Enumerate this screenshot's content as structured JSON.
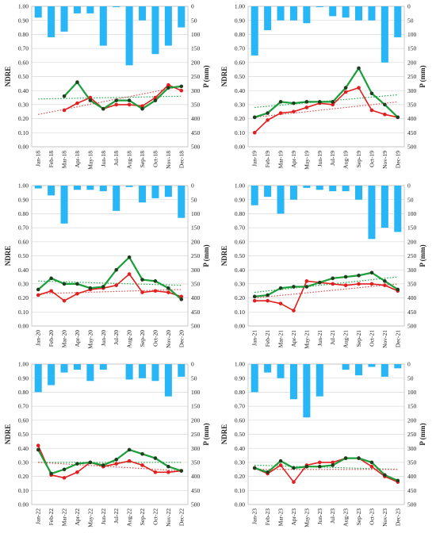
{
  "figure": {
    "y_left_label": "NDRE",
    "y_right_label": "P (mm)",
    "y_left_ticks": [
      "0.00",
      "0.10",
      "0.20",
      "0.30",
      "0.40",
      "0.50",
      "0.60",
      "0.70",
      "0.80",
      "0.90",
      "1.00"
    ],
    "y_right_ticks": [
      "0",
      "50",
      "100",
      "150",
      "200",
      "250",
      "300",
      "350",
      "400",
      "450",
      "500"
    ],
    "colors": {
      "precip": "#29b6f6",
      "green_series": "#1a9e3a",
      "red_series": "#e31e1e",
      "green_trend": "#22a84a",
      "red_trend": "#e24a4a",
      "grid": "#d9d9d9",
      "axis": "#595959"
    }
  },
  "chart_data": [
    {
      "type": "bar+line",
      "xlim_labels": "months",
      "ylim": [
        0,
        1
      ],
      "y2lim": [
        0,
        500
      ],
      "y2_inverted": true,
      "grid": true,
      "categories": [
        "Jan-18",
        "Feb-18",
        "Mar-18",
        "Apr-18",
        "May-18",
        "Jun-18",
        "Jul-18",
        "Aug-18",
        "Sep-18",
        "Oct-18",
        "Nov-18",
        "Dec-18"
      ],
      "precipitation": [
        40,
        110,
        90,
        25,
        25,
        140,
        3,
        210,
        50,
        170,
        140,
        75
      ],
      "series": [
        {
          "values": [
            null,
            null,
            0.36,
            0.46,
            0.33,
            0.27,
            0.33,
            0.33,
            0.27,
            0.33,
            0.42,
            0.43
          ]
        },
        {
          "values": [
            null,
            null,
            0.26,
            0.31,
            0.35,
            0.27,
            0.3,
            0.3,
            0.29,
            0.35,
            0.44,
            0.4
          ]
        }
      ],
      "trend_green": [
        0.34,
        0.36
      ],
      "trend_red": [
        0.23,
        0.43
      ]
    },
    {
      "type": "bar+line",
      "ylim": [
        0,
        1
      ],
      "y2lim": [
        0,
        500
      ],
      "y2_inverted": true,
      "grid": true,
      "categories": [
        "Jan-19",
        "Feb-19",
        "Mar-19",
        "Apr-19",
        "May-19",
        "Jun-19",
        "Jul-19",
        "Aug-19",
        "Sep-19",
        "Oct-19",
        "Nov-19",
        "Dec-19"
      ],
      "precipitation": [
        175,
        85,
        50,
        50,
        60,
        3,
        35,
        40,
        50,
        50,
        200,
        110
      ],
      "series": [
        {
          "values": [
            0.21,
            0.24,
            0.32,
            0.31,
            0.32,
            0.32,
            0.32,
            0.42,
            0.56,
            0.38,
            0.3,
            0.21
          ]
        },
        {
          "values": [
            0.1,
            0.19,
            0.24,
            0.25,
            0.28,
            0.31,
            0.3,
            0.39,
            0.42,
            0.26,
            0.23,
            0.21
          ]
        }
      ],
      "trend_green": [
        0.28,
        0.37
      ],
      "trend_red": [
        0.21,
        0.32
      ]
    },
    {
      "type": "bar+line",
      "ylim": [
        0,
        1
      ],
      "y2lim": [
        0,
        500
      ],
      "y2_inverted": true,
      "grid": true,
      "categories": [
        "Jan-20",
        "Feb-20",
        "Mar-20",
        "Apr-20",
        "May-20",
        "Jun-20",
        "Jul-20",
        "Aug-20",
        "Sep-20",
        "Oct-20",
        "Nov-20",
        "Dec-20"
      ],
      "precipitation": [
        10,
        35,
        135,
        15,
        15,
        20,
        90,
        5,
        60,
        45,
        40,
        115
      ],
      "series": [
        {
          "values": [
            0.26,
            0.34,
            0.3,
            0.3,
            0.27,
            0.28,
            0.4,
            0.49,
            0.33,
            0.32,
            0.27,
            0.19
          ]
        },
        {
          "values": [
            0.22,
            0.25,
            0.18,
            0.23,
            0.26,
            0.27,
            0.29,
            0.37,
            0.24,
            0.25,
            0.24,
            0.21
          ]
        }
      ],
      "trend_green": [
        0.32,
        0.29
      ],
      "trend_red": [
        0.23,
        0.26
      ]
    },
    {
      "type": "bar+line",
      "ylim": [
        0,
        1
      ],
      "y2lim": [
        0,
        500
      ],
      "y2_inverted": true,
      "grid": true,
      "categories": [
        "Jan-21",
        "Feb-21",
        "Mar-21",
        "Apr-21",
        "May-21",
        "Jun-21",
        "Jul-21",
        "Aug-21",
        "Sep-21",
        "Oct-21",
        "Nov-21",
        "Dec-21"
      ],
      "precipitation": [
        70,
        40,
        100,
        50,
        8,
        15,
        20,
        20,
        50,
        190,
        150,
        165
      ],
      "series": [
        {
          "values": [
            0.21,
            0.22,
            0.27,
            0.28,
            0.28,
            0.31,
            0.34,
            0.35,
            0.36,
            0.38,
            0.32,
            0.26
          ]
        },
        {
          "values": [
            0.18,
            0.18,
            0.16,
            0.11,
            0.32,
            0.31,
            0.3,
            0.29,
            0.3,
            0.3,
            0.29,
            0.25
          ]
        }
      ],
      "trend_green": [
        0.24,
        0.35
      ],
      "trend_red": [
        0.2,
        0.3
      ]
    },
    {
      "type": "bar+line",
      "ylim": [
        0,
        1
      ],
      "y2lim": [
        0,
        500
      ],
      "y2_inverted": true,
      "grid": true,
      "categories": [
        "Jan-22",
        "Feb-22",
        "Mar-22",
        "Apr-22",
        "May-22",
        "Jun-22",
        "Jul-22",
        "Aug-22",
        "Sep-22",
        "Oct-22",
        "Nov-22",
        "Dec-22"
      ],
      "precipitation": [
        100,
        75,
        30,
        20,
        60,
        20,
        0,
        55,
        50,
        60,
        115,
        45
      ],
      "series": [
        {
          "values": [
            0.39,
            0.22,
            0.25,
            0.29,
            0.3,
            0.28,
            0.32,
            0.39,
            0.36,
            0.33,
            0.27,
            0.24
          ]
        },
        {
          "values": [
            0.42,
            0.21,
            0.19,
            0.23,
            0.3,
            0.27,
            0.29,
            0.31,
            0.28,
            0.23,
            0.23,
            0.24
          ]
        }
      ],
      "trend_green": [
        0.3,
        0.3
      ],
      "trend_red": [
        0.3,
        0.24
      ]
    },
    {
      "type": "bar+line",
      "ylim": [
        0,
        1
      ],
      "y2lim": [
        0,
        500
      ],
      "y2_inverted": true,
      "grid": true,
      "categories": [
        "Jan-23",
        "Feb-23",
        "Mar-23",
        "Apr-23",
        "May-23",
        "Jun-23",
        "Jul-23",
        "Aug-23",
        "Sep-23",
        "Oct-23",
        "Nov-23",
        "Dec-23"
      ],
      "precipitation": [
        100,
        30,
        50,
        125,
        190,
        115,
        0,
        20,
        40,
        10,
        45,
        15
      ],
      "series": [
        {
          "values": [
            0.26,
            0.23,
            0.31,
            0.26,
            0.27,
            0.27,
            0.28,
            0.33,
            0.33,
            0.3,
            0.21,
            0.17
          ]
        },
        {
          "values": [
            0.26,
            0.22,
            0.28,
            0.16,
            0.28,
            0.3,
            0.3,
            0.33,
            0.33,
            0.27,
            0.2,
            0.16
          ]
        }
      ],
      "trend_green": [
        0.28,
        0.25
      ],
      "trend_red": [
        0.25,
        0.25
      ]
    }
  ]
}
